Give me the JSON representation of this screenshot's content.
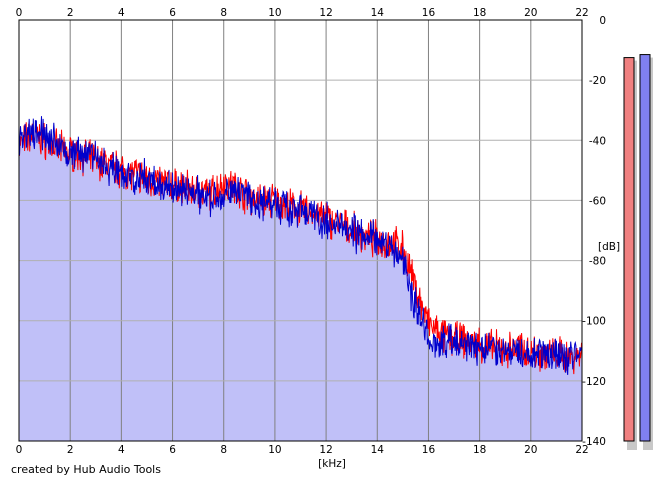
{
  "credit": "created by Hub Audio Tools",
  "chart_data": {
    "type": "line",
    "xlabel": "[kHz]",
    "ylabel": "[dB]",
    "xlim": [
      0,
      22
    ],
    "ylim": [
      -140,
      0
    ],
    "x_ticks": [
      0,
      2,
      4,
      6,
      8,
      10,
      12,
      14,
      16,
      18,
      20,
      22
    ],
    "y_ticks": [
      0,
      -20,
      -40,
      -60,
      -80,
      -100,
      -120,
      -140
    ],
    "grid": true,
    "fill_color": "#c0c0f8",
    "series": [
      {
        "color": "#ff0000",
        "x": [
          0,
          0.5,
          1,
          1.5,
          2,
          2.5,
          3,
          3.5,
          4,
          4.5,
          5,
          5.5,
          6,
          6.5,
          7,
          7.5,
          8,
          8.5,
          9,
          9.5,
          10,
          10.5,
          11,
          11.5,
          12,
          12.5,
          13,
          13.5,
          14,
          14.5,
          15,
          15.3,
          15.6,
          16,
          16.5,
          17,
          17.5,
          18,
          18.5,
          19,
          19.5,
          20,
          20.5,
          21,
          21.5,
          22
        ],
        "y": [
          -42,
          -38,
          -40,
          -43,
          -44,
          -45,
          -47,
          -48,
          -50,
          -51,
          -53,
          -54,
          -55,
          -56,
          -57,
          -58,
          -54,
          -56,
          -59,
          -60,
          -60,
          -62,
          -63,
          -64,
          -66,
          -68,
          -70,
          -72,
          -73,
          -74,
          -76,
          -84,
          -92,
          -101,
          -105,
          -106,
          -107,
          -108,
          -109,
          -110,
          -109,
          -110,
          -111,
          -111,
          -112,
          -111
        ]
      },
      {
        "color": "#0000cc",
        "x": [
          0,
          0.5,
          1,
          1.5,
          2,
          2.5,
          3,
          3.5,
          4,
          4.5,
          5,
          5.5,
          6,
          6.5,
          7,
          7.5,
          8,
          8.5,
          9,
          9.5,
          10,
          10.5,
          11,
          11.5,
          12,
          12.5,
          13,
          13.5,
          14,
          14.5,
          15,
          15.3,
          15.6,
          16,
          16.5,
          17,
          17.5,
          18,
          18.5,
          19,
          19.5,
          20,
          20.5,
          21,
          21.5,
          22
        ],
        "y": [
          -40,
          -37,
          -38,
          -42,
          -43,
          -44,
          -46,
          -49,
          -51,
          -52,
          -53,
          -55,
          -56,
          -57,
          -58,
          -59,
          -58,
          -57,
          -60,
          -61,
          -61,
          -63,
          -63,
          -65,
          -67,
          -69,
          -71,
          -72,
          -73,
          -75,
          -79,
          -90,
          -98,
          -106,
          -107,
          -107,
          -108,
          -109,
          -110,
          -110,
          -110,
          -111,
          -111,
          -112,
          -112,
          -111
        ]
      }
    ],
    "meters": [
      {
        "color": "#f08080",
        "value_db": -12.5
      },
      {
        "color": "#8080f0",
        "value_db": -11.5
      }
    ]
  }
}
